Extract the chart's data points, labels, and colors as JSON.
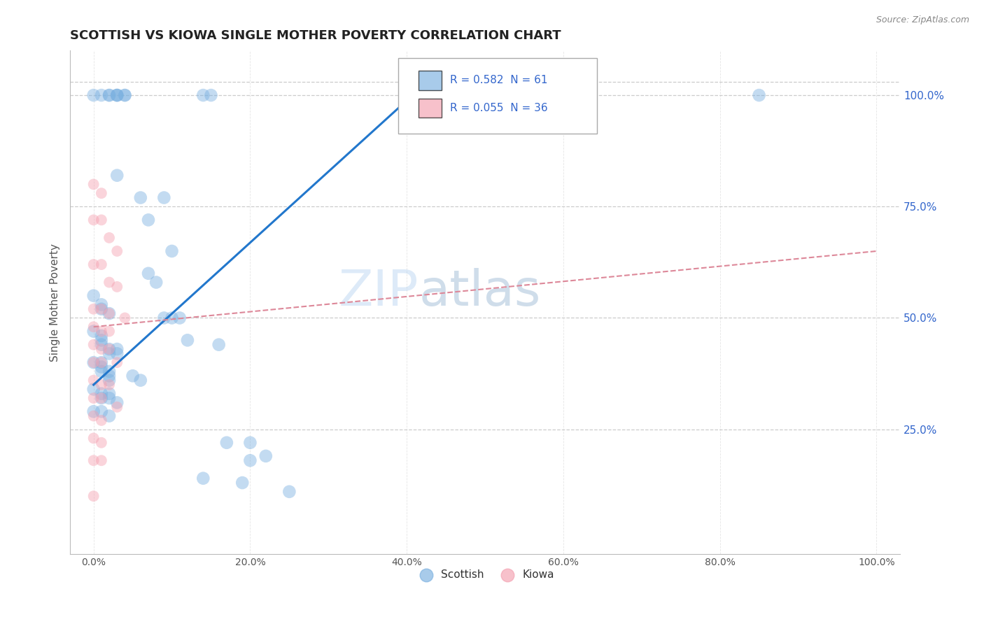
{
  "title": "SCOTTISH VS KIOWA SINGLE MOTHER POVERTY CORRELATION CHART",
  "source": "Source: ZipAtlas.com",
  "ylabel": "Single Mother Poverty",
  "watermark_line1": "ZIP",
  "watermark_line2": "atlas",
  "legend_entries": [
    {
      "label": "Scottish",
      "color": "#7ab0e0",
      "R": 0.582,
      "N": 61
    },
    {
      "label": "Kiowa",
      "color": "#f4a0b0",
      "R": 0.055,
      "N": 36
    }
  ],
  "blue_scatter": [
    [
      0.0,
      1.0
    ],
    [
      0.01,
      1.0
    ],
    [
      0.02,
      1.0
    ],
    [
      0.02,
      1.0
    ],
    [
      0.03,
      1.0
    ],
    [
      0.03,
      1.0
    ],
    [
      0.03,
      1.0
    ],
    [
      0.04,
      1.0
    ],
    [
      0.04,
      1.0
    ],
    [
      0.14,
      1.0
    ],
    [
      0.15,
      1.0
    ],
    [
      0.85,
      1.0
    ],
    [
      0.03,
      0.82
    ],
    [
      0.06,
      0.77
    ],
    [
      0.09,
      0.77
    ],
    [
      0.07,
      0.72
    ],
    [
      0.1,
      0.65
    ],
    [
      0.07,
      0.6
    ],
    [
      0.08,
      0.58
    ],
    [
      0.0,
      0.55
    ],
    [
      0.01,
      0.53
    ],
    [
      0.01,
      0.52
    ],
    [
      0.02,
      0.51
    ],
    [
      0.09,
      0.5
    ],
    [
      0.1,
      0.5
    ],
    [
      0.11,
      0.5
    ],
    [
      0.0,
      0.47
    ],
    [
      0.01,
      0.46
    ],
    [
      0.01,
      0.45
    ],
    [
      0.01,
      0.44
    ],
    [
      0.02,
      0.43
    ],
    [
      0.02,
      0.42
    ],
    [
      0.03,
      0.43
    ],
    [
      0.03,
      0.42
    ],
    [
      0.12,
      0.45
    ],
    [
      0.16,
      0.44
    ],
    [
      0.0,
      0.4
    ],
    [
      0.01,
      0.4
    ],
    [
      0.01,
      0.39
    ],
    [
      0.01,
      0.38
    ],
    [
      0.02,
      0.38
    ],
    [
      0.02,
      0.37
    ],
    [
      0.02,
      0.36
    ],
    [
      0.05,
      0.37
    ],
    [
      0.06,
      0.36
    ],
    [
      0.0,
      0.34
    ],
    [
      0.01,
      0.33
    ],
    [
      0.01,
      0.32
    ],
    [
      0.02,
      0.33
    ],
    [
      0.02,
      0.32
    ],
    [
      0.03,
      0.31
    ],
    [
      0.0,
      0.29
    ],
    [
      0.01,
      0.29
    ],
    [
      0.02,
      0.28
    ],
    [
      0.17,
      0.22
    ],
    [
      0.2,
      0.22
    ],
    [
      0.2,
      0.18
    ],
    [
      0.22,
      0.19
    ],
    [
      0.14,
      0.14
    ],
    [
      0.19,
      0.13
    ],
    [
      0.25,
      0.11
    ]
  ],
  "pink_scatter": [
    [
      0.0,
      0.8
    ],
    [
      0.01,
      0.78
    ],
    [
      0.0,
      0.72
    ],
    [
      0.01,
      0.72
    ],
    [
      0.02,
      0.68
    ],
    [
      0.03,
      0.65
    ],
    [
      0.0,
      0.62
    ],
    [
      0.01,
      0.62
    ],
    [
      0.02,
      0.58
    ],
    [
      0.03,
      0.57
    ],
    [
      0.0,
      0.52
    ],
    [
      0.01,
      0.52
    ],
    [
      0.02,
      0.51
    ],
    [
      0.04,
      0.5
    ],
    [
      0.0,
      0.48
    ],
    [
      0.01,
      0.47
    ],
    [
      0.02,
      0.47
    ],
    [
      0.0,
      0.44
    ],
    [
      0.01,
      0.43
    ],
    [
      0.02,
      0.43
    ],
    [
      0.0,
      0.4
    ],
    [
      0.01,
      0.4
    ],
    [
      0.03,
      0.4
    ],
    [
      0.0,
      0.36
    ],
    [
      0.01,
      0.35
    ],
    [
      0.0,
      0.32
    ],
    [
      0.01,
      0.32
    ],
    [
      0.0,
      0.28
    ],
    [
      0.01,
      0.27
    ],
    [
      0.02,
      0.35
    ],
    [
      0.0,
      0.23
    ],
    [
      0.01,
      0.22
    ],
    [
      0.03,
      0.3
    ],
    [
      0.0,
      0.18
    ],
    [
      0.01,
      0.18
    ],
    [
      0.0,
      0.1
    ]
  ],
  "blue_line_x": [
    0.0,
    0.42
  ],
  "blue_line_y": [
    0.35,
    1.02
  ],
  "pink_line_x": [
    0.0,
    1.0
  ],
  "pink_line_y": [
    0.48,
    0.65
  ],
  "scatter_size_blue": 180,
  "scatter_size_pink": 130,
  "scatter_alpha": 0.45,
  "scatter_color_blue": "#7ab0e0",
  "scatter_color_pink": "#f4a0b0",
  "line_color_blue": "#2277cc",
  "line_color_pink": "#dd8899",
  "bg_color": "#ffffff",
  "grid_color": "#cccccc",
  "title_color": "#222222",
  "axis_color": "#555555",
  "ytick_color": "#3366cc",
  "xtick_vals": [
    0.0,
    0.2,
    0.4,
    0.6,
    0.8,
    1.0
  ],
  "ytick_vals": [
    0.25,
    0.5,
    0.75,
    1.0
  ],
  "xlim": [
    -0.03,
    1.03
  ],
  "ylim": [
    -0.03,
    1.1
  ]
}
